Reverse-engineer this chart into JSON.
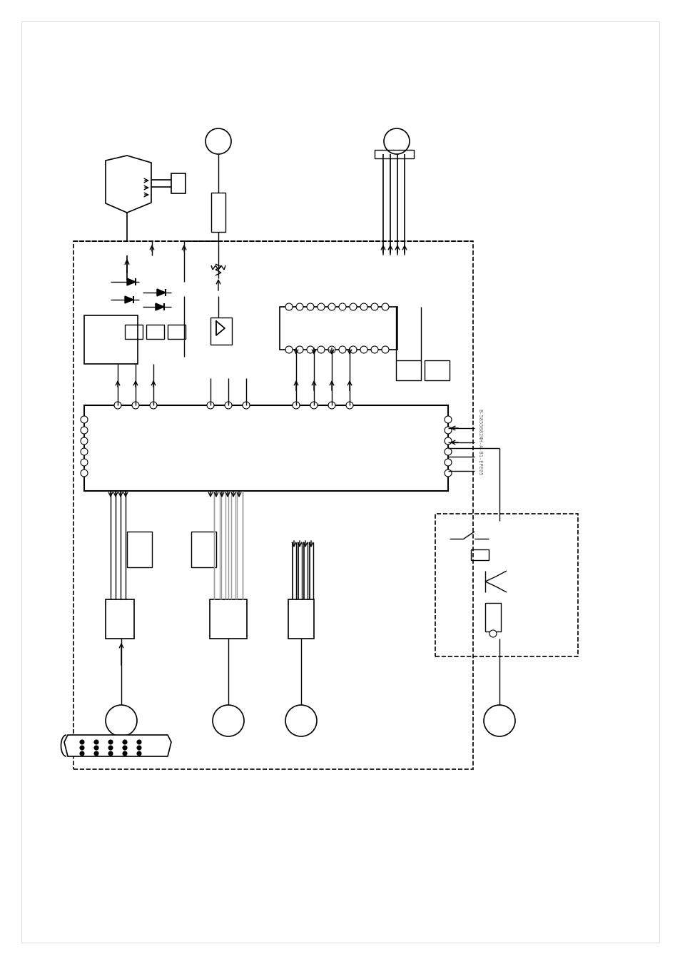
{
  "bg_color": "#ffffff",
  "line_color": "#000000",
  "gray_line_color": "#999999",
  "dashed_line_color": "#000000",
  "figsize": [
    9.54,
    13.51
  ],
  "dpi": 100,
  "title_text": "B-5855082NH-A-B1-EPE05",
  "title_rotation": -90
}
